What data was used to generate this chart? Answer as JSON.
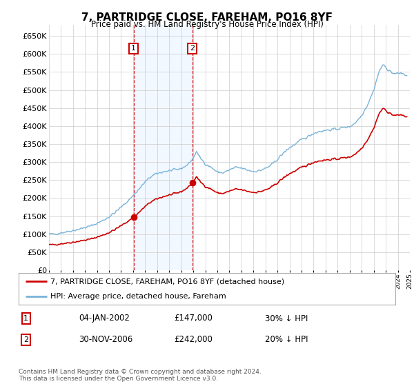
{
  "title": "7, PARTRIDGE CLOSE, FAREHAM, PO16 8YF",
  "subtitle": "Price paid vs. HM Land Registry's House Price Index (HPI)",
  "ylim": [
    0,
    680000
  ],
  "yticks": [
    0,
    50000,
    100000,
    150000,
    200000,
    250000,
    300000,
    350000,
    400000,
    450000,
    500000,
    550000,
    600000,
    650000
  ],
  "xstart_year": 1995,
  "xend_year": 2025,
  "sale1_date": 2002.04,
  "sale1_price": 147000,
  "sale1_label": "1",
  "sale2_date": 2006.92,
  "sale2_price": 242000,
  "sale2_label": "2",
  "line_color_property": "#cc0000",
  "line_color_hpi": "#7ab3d8",
  "shaded_color": "#ddeeff",
  "legend_label_property": "7, PARTRIDGE CLOSE, FAREHAM, PO16 8YF (detached house)",
  "legend_label_hpi": "HPI: Average price, detached house, Fareham",
  "annotation1_date": "04-JAN-2002",
  "annotation1_price": "£147,000",
  "annotation1_hpi": "30% ↓ HPI",
  "annotation2_date": "30-NOV-2006",
  "annotation2_price": "£242,000",
  "annotation2_hpi": "20% ↓ HPI",
  "footer": "Contains HM Land Registry data © Crown copyright and database right 2024.\nThis data is licensed under the Open Government Licence v3.0.",
  "background_color": "#ffffff",
  "grid_color": "#cccccc"
}
